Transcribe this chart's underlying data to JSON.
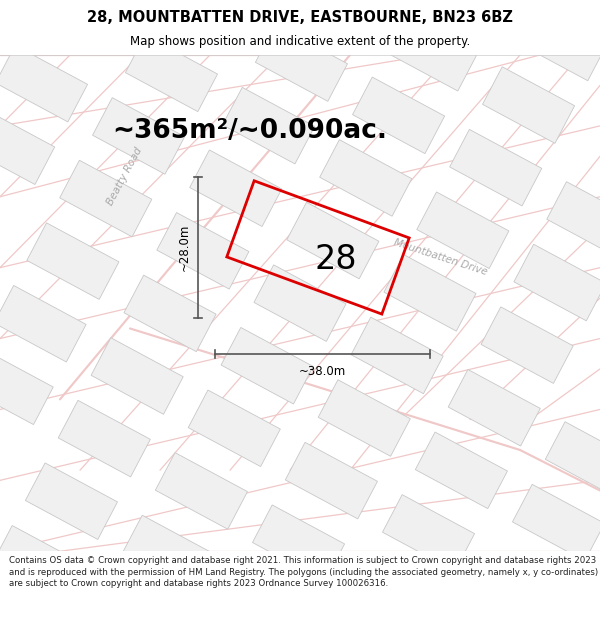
{
  "title": "28, MOUNTBATTEN DRIVE, EASTBOURNE, BN23 6BZ",
  "subtitle": "Map shows position and indicative extent of the property.",
  "area_text": "~365m²/~0.090ac.",
  "label_28": "28",
  "dim_width": "~38.0m",
  "dim_height": "~28.0m",
  "footer": "Contains OS data © Crown copyright and database right 2021. This information is subject to Crown copyright and database rights 2023 and is reproduced with the permission of HM Land Registry. The polygons (including the associated geometry, namely x, y co-ordinates) are subject to Crown copyright and database rights 2023 Ordnance Survey 100026316.",
  "bg_color": "#ffffff",
  "map_bg": "#ffffff",
  "road_color": "#f0c8c8",
  "building_fill": "#f0f0f0",
  "building_edge": "#c8c8c8",
  "plot_color": "#dd0000",
  "street_label_color": "#aaaaaa",
  "title_fontsize": 10.5,
  "subtitle_fontsize": 8.5,
  "area_fontsize": 19,
  "label_fontsize": 24,
  "footer_fontsize": 6.2,
  "footer_color": "#222222",
  "beatty_road_label": "Beatty Road",
  "mountbatten_label": "Mountbatten Drive",
  "title_color": "#000000",
  "dim_line_color": "#555555",
  "header_bg": "#f8f8f8"
}
